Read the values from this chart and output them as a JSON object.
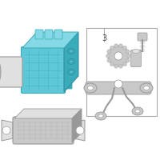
{
  "bg_color": "#ffffff",
  "teal_main": "#5ec8d8",
  "teal_dark": "#3aabb8",
  "teal_light": "#85d8e5",
  "teal_shadow": "#2e8a9a",
  "gray_part": "#c8c8c8",
  "gray_dark": "#999999",
  "gray_light": "#e0e0e0",
  "gray_line": "#888888",
  "white": "#ffffff",
  "box_line": "#aaaaaa",
  "text_color": "#333333",
  "figsize": [
    2.0,
    2.0
  ],
  "dpi": 100
}
